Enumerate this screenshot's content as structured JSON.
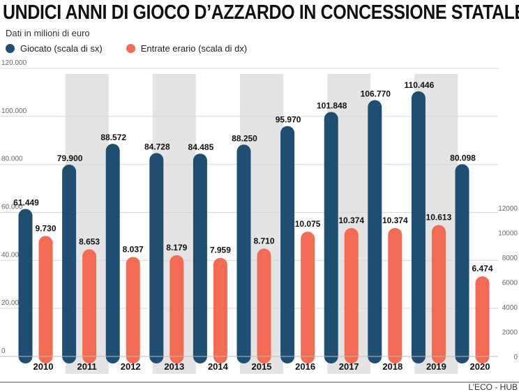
{
  "title": "UNDICI ANNI DI GIOCO D’AZZARDO IN CONCESSIONE STATALE",
  "subtitle": "Dati in milioni di euro",
  "source": "L’ECO - HUB",
  "colors": {
    "giocato": "#1e4f72",
    "entrate": "#f26b52",
    "band": "#e4e4e4",
    "grid": "#d8d8d8"
  },
  "chart_data": {
    "type": "bar",
    "title": "UNDICI ANNI DI GIOCO D’AZZARDO IN CONCESSIONE STATALE",
    "subtitle": "Dati in milioni di euro",
    "categories": [
      "2010",
      "2011",
      "2012",
      "2013",
      "2014",
      "2015",
      "2016",
      "2017",
      "2018",
      "2019",
      "2020"
    ],
    "series": [
      {
        "name": "Giocato (scala di sx)",
        "axis": "left",
        "values": [
          61449,
          79900,
          88572,
          84728,
          84485,
          88250,
          95970,
          101848,
          106770,
          110446,
          80098
        ],
        "labels": [
          "61.449",
          "79.900",
          "88.572",
          "84.728",
          "84.485",
          "88.250",
          "95.970",
          "101.848",
          "106.770",
          "110.446",
          "80.098"
        ]
      },
      {
        "name": "Entrate erario (scala di dx)",
        "axis": "right",
        "values": [
          9730,
          8653,
          8037,
          8179,
          7959,
          8710,
          10075,
          10374,
          10374,
          10613,
          6474
        ],
        "labels": [
          "9.730",
          "8.653",
          "8.037",
          "8.179",
          "7.959",
          "8.710",
          "10.075",
          "10.374",
          "10.374",
          "10.613",
          "6.474"
        ]
      }
    ],
    "y_left": {
      "ylim": [
        0,
        120000
      ],
      "ticks": [
        0,
        20000,
        40000,
        60000,
        80000,
        100000,
        120000
      ],
      "tick_labels": [
        "0",
        "20.000",
        "40.000",
        "60.000",
        "80.000",
        "100.000",
        "120.000"
      ]
    },
    "y_right": {
      "ylim": [
        0,
        12000
      ],
      "ticks": [
        0,
        2000,
        4000,
        6000,
        8000,
        10000,
        12000
      ],
      "tick_labels": [
        "0",
        "2000",
        "4000",
        "6000",
        "8000",
        "10000",
        "12000"
      ]
    },
    "grid": true,
    "legend_position": "top-left",
    "alternating_bands": [
      "2011",
      "2013",
      "2015",
      "2017",
      "2019"
    ]
  }
}
